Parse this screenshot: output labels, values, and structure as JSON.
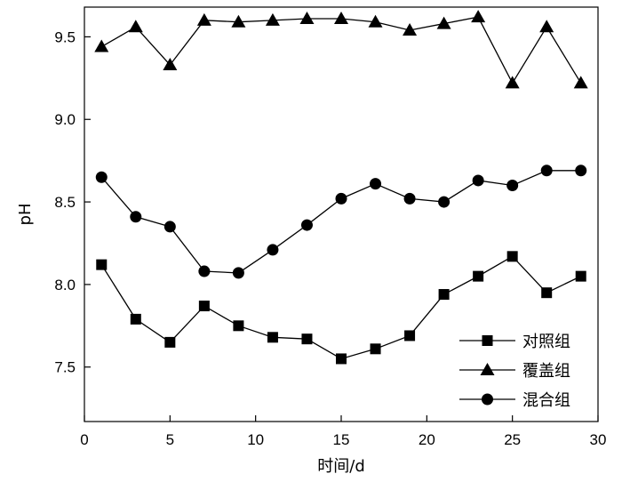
{
  "chart_data": {
    "type": "line",
    "title": "",
    "xlabel": "时间/d",
    "ylabel": "pH",
    "xlim": [
      0,
      30
    ],
    "ylim": [
      7.17,
      9.68
    ],
    "x_ticks": [
      0,
      5,
      10,
      15,
      20,
      25,
      30
    ],
    "y_ticks": [
      7.5,
      8.0,
      8.5,
      9.0,
      9.5
    ],
    "y_tick_labels": [
      "7.5",
      "8.0",
      "8.5",
      "9.0",
      "9.5"
    ],
    "grid": false,
    "legend_position": "bottom-right",
    "x": [
      1,
      3,
      5,
      7,
      9,
      11,
      13,
      15,
      17,
      19,
      21,
      23,
      25,
      27,
      29
    ],
    "series": [
      {
        "name": "对照组",
        "marker": "square",
        "values": [
          8.12,
          7.79,
          7.65,
          7.87,
          7.75,
          7.68,
          7.67,
          7.55,
          7.61,
          7.69,
          7.94,
          8.05,
          8.17,
          7.95,
          8.05
        ]
      },
      {
        "name": "覆盖组",
        "marker": "triangle",
        "values": [
          9.44,
          9.56,
          9.33,
          9.6,
          9.59,
          9.6,
          9.61,
          9.61,
          9.59,
          9.54,
          9.58,
          9.62,
          9.22,
          9.56,
          9.22
        ]
      },
      {
        "name": "混合组",
        "marker": "circle",
        "values": [
          8.65,
          8.41,
          8.35,
          8.08,
          8.07,
          8.21,
          8.36,
          8.52,
          8.61,
          8.52,
          8.5,
          8.63,
          8.6,
          8.69,
          8.69
        ]
      }
    ],
    "colors": {
      "line": "#000000",
      "marker": "#000000",
      "axis": "#000000"
    }
  }
}
